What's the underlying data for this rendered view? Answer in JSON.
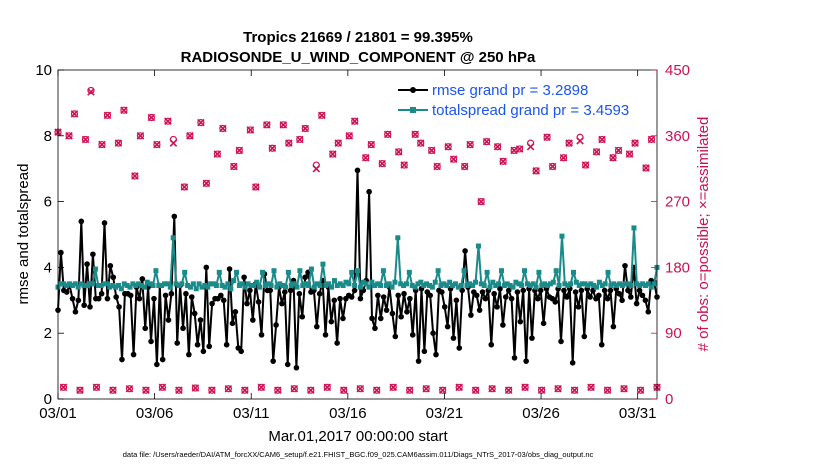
{
  "chart_data": {
    "type": "line",
    "title": "Tropics 21669 / 21801 = 99.395%",
    "subtitle": "RADIOSONDE_U_WIND_COMPONENT @ 250 hPa",
    "xlabel": "Mar.01,2017 00:00:00 start",
    "ylabel": "rmse and totalspread",
    "ylabel_right": "# of obs: o=possible; ×=assimilated",
    "footer": "data file: /Users/raeder/DAI/ATM_forcXX/CAM6_setup/f.e21.FHIST_BGC.f09_025.CAM6assim.011/Diags_NTrS_2017-03/obs_diag_output.nc",
    "xlim": [
      1,
      32
    ],
    "ylim": [
      0,
      10
    ],
    "ylim_right": [
      0,
      450
    ],
    "x_ticks": [
      1,
      6,
      11,
      16,
      21,
      26,
      31
    ],
    "x_tick_labels": [
      "03/01",
      "03/06",
      "03/11",
      "03/16",
      "03/21",
      "03/26",
      "03/31"
    ],
    "y_ticks": [
      0,
      2,
      4,
      6,
      8,
      10
    ],
    "y_tick_labels": [
      "0",
      "2",
      "4",
      "6",
      "8",
      "10"
    ],
    "y_right_ticks": [
      0,
      90,
      180,
      270,
      360,
      450
    ],
    "y_right_tick_labels": [
      "0",
      "90",
      "180",
      "270",
      "360",
      "450"
    ],
    "series": [
      {
        "name": "rmse grand pr = 3.2898",
        "color": "#000000",
        "marker": "dot",
        "axis": "left",
        "values": [
          2.7,
          4.45,
          3.3,
          3.25,
          3.45,
          3.05,
          2.65,
          3.0,
          5.4,
          2.85,
          4.1,
          2.8,
          4.4,
          3.05,
          3.05,
          3.2,
          5.35,
          3.05,
          4.05,
          3.7,
          3.1,
          2.8,
          1.2,
          3.2,
          3.2,
          3.15,
          1.35,
          3.4,
          3.05,
          3.65,
          2.15,
          3.4,
          1.75,
          3.05,
          1.05,
          3.45,
          1.2,
          3.15,
          2.4,
          3.2,
          5.55,
          1.7,
          3.45,
          2.15,
          3.2,
          1.35,
          3.1,
          2.6,
          1.65,
          2.4,
          1.45,
          4.0,
          1.6,
          2.9,
          3.05,
          3.05,
          3.15,
          3.0,
          1.65,
          3.95,
          2.3,
          2.65,
          1.55,
          1.45,
          3.7,
          2.9,
          3.3,
          2.4,
          3.5,
          2.95,
          1.95,
          3.8,
          3.3,
          3.3,
          1.15,
          2.25,
          3.4,
          2.9,
          3.25,
          1.05,
          3.3,
          3.6,
          0.95,
          3.2,
          2.5,
          3.7,
          3.85,
          3.25,
          3.3,
          2.2,
          3.2,
          3.6,
          1.95,
          3.4,
          2.35,
          3.0,
          1.7,
          3.05,
          2.45,
          3.05,
          3.15,
          3.1,
          3.3,
          6.95,
          3.05,
          3.3,
          3.6,
          6.3,
          2.45,
          2.15,
          3.15,
          2.45,
          3.1,
          2.7,
          3.4,
          2.6,
          1.9,
          3.15,
          2.5,
          3.2,
          2.65,
          3.05,
          1.95,
          3.3,
          1.15,
          3.35,
          1.45,
          3.25,
          3.15,
          2.0,
          1.35,
          3.3,
          3.25,
          2.8,
          2.2,
          3.35,
          1.85,
          3.0,
          1.55,
          3.3,
          4.5,
          3.4,
          2.55,
          3.25,
          3.15,
          2.7,
          3.25,
          3.05,
          3.3,
          1.65,
          3.2,
          2.8,
          3.35,
          2.25,
          3.1,
          3.3,
          3.05,
          1.25,
          3.25,
          2.35,
          3.3,
          1.15,
          3.35,
          1.85,
          3.3,
          3.05,
          3.3,
          2.3,
          3.35,
          3.1,
          3.05,
          2.95,
          3.35,
          1.75,
          3.3,
          3.1,
          3.35,
          1.1,
          3.25,
          2.8,
          3.3,
          1.9,
          3.35,
          3.1,
          3.3,
          3.05,
          3.15,
          1.65,
          3.3,
          3.05,
          3.3,
          2.2,
          3.35,
          3.2,
          3.0,
          4.05,
          3.3,
          3.1,
          4.0,
          2.9,
          3.3,
          3.15,
          3.0,
          2.65,
          3.6,
          3.55,
          3.1
        ]
      },
      {
        "name": "totalspread grand pr = 3.4593",
        "color": "#1a8a8a",
        "marker": "square",
        "axis": "left",
        "values": [
          3.4,
          3.5,
          3.5,
          3.45,
          3.5,
          3.45,
          3.5,
          3.4,
          3.5,
          3.45,
          3.45,
          3.5,
          3.5,
          3.95,
          3.45,
          3.45,
          3.5,
          3.5,
          3.4,
          3.45,
          3.4,
          3.45,
          3.35,
          3.5,
          3.45,
          3.4,
          3.5,
          3.45,
          3.5,
          3.45,
          3.4,
          3.55,
          3.5,
          3.45,
          3.9,
          3.45,
          3.45,
          3.5,
          3.5,
          3.4,
          4.9,
          3.5,
          3.45,
          3.5,
          3.85,
          3.45,
          3.4,
          3.5,
          3.35,
          3.5,
          3.4,
          3.45,
          3.4,
          3.5,
          3.5,
          3.45,
          3.85,
          3.45,
          3.4,
          3.5,
          3.35,
          3.6,
          3.85,
          3.45,
          3.5,
          3.4,
          3.5,
          3.45,
          3.45,
          3.55,
          3.4,
          3.85,
          3.45,
          3.5,
          3.45,
          3.9,
          3.4,
          3.5,
          3.45,
          3.4,
          3.85,
          3.45,
          3.5,
          3.4,
          3.9,
          3.45,
          3.5,
          3.45,
          3.95,
          3.4,
          3.5,
          3.45,
          4.1,
          3.45,
          3.5,
          3.4,
          3.6,
          3.45,
          3.5,
          3.45,
          3.55,
          3.5,
          3.85,
          3.45,
          3.9,
          3.4,
          3.55,
          3.5,
          3.4,
          3.55,
          3.45,
          3.5,
          3.45,
          3.9,
          3.45,
          3.5,
          3.4,
          3.55,
          4.9,
          3.5,
          3.45,
          3.5,
          3.85,
          3.45,
          3.4,
          3.5,
          3.55,
          3.45,
          3.5,
          3.45,
          3.4,
          3.55,
          3.9,
          3.45,
          3.5,
          3.45,
          3.55,
          3.45,
          3.5,
          3.4,
          3.45,
          3.9,
          3.45,
          3.5,
          3.45,
          3.55,
          4.65,
          3.5,
          3.45,
          3.85,
          3.4,
          3.55,
          3.45,
          3.5,
          3.9,
          3.45,
          3.5,
          3.45,
          3.4,
          3.55,
          3.5,
          3.45,
          3.9,
          3.5,
          3.45,
          3.5,
          3.4,
          3.85,
          3.45,
          3.5,
          3.45,
          3.5,
          3.55,
          3.9,
          3.45,
          4.95,
          3.5,
          3.45,
          3.5,
          3.85,
          3.55,
          3.45,
          3.5,
          3.5,
          3.45,
          3.5,
          3.45,
          3.4,
          3.55,
          3.45,
          3.5,
          3.85,
          3.45,
          3.5,
          3.45,
          3.5,
          3.45,
          3.5,
          3.5,
          3.45,
          5.2,
          3.5,
          3.45,
          3.5,
          3.45,
          3.5,
          3.4,
          3.5,
          4.0
        ]
      },
      {
        "name": "obs possible",
        "color": "#cc1155",
        "marker": "circle",
        "axis": "right",
        "values": [
          365,
          16,
          360,
          390,
          12,
          355,
          422,
          16,
          348,
          388,
          12,
          350,
          395,
          14,
          305,
          360,
          12,
          385,
          348,
          16,
          380,
          355,
          12,
          290,
          360,
          15,
          378,
          295,
          12,
          335,
          370,
          14,
          318,
          340,
          12,
          368,
          290,
          16,
          375,
          343,
          12,
          375,
          350,
          14,
          355,
          370,
          12,
          320,
          388,
          16,
          335,
          350,
          12,
          360,
          380,
          14,
          330,
          348,
          12,
          322,
          362,
          16,
          338,
          320,
          12,
          362,
          350,
          14,
          340,
          318,
          12,
          345,
          328,
          16,
          318,
          348,
          12,
          270,
          352,
          14,
          345,
          325,
          12,
          340,
          342,
          16,
          350,
          312,
          12,
          358,
          318,
          14,
          330,
          350,
          12,
          358,
          320,
          16,
          338,
          355,
          12,
          330,
          340,
          14,
          335,
          350,
          12,
          316,
          355,
          16
        ]
      },
      {
        "name": "obs assimilated",
        "color": "#cc1155",
        "marker": "x",
        "axis": "right",
        "values": [
          365,
          16,
          360,
          390,
          12,
          355,
          420,
          16,
          348,
          388,
          12,
          350,
          395,
          14,
          305,
          360,
          12,
          385,
          348,
          16,
          380,
          350,
          12,
          290,
          360,
          15,
          378,
          295,
          12,
          335,
          370,
          14,
          318,
          340,
          12,
          368,
          290,
          16,
          375,
          343,
          12,
          375,
          350,
          14,
          355,
          370,
          12,
          315,
          388,
          16,
          335,
          350,
          12,
          360,
          380,
          14,
          330,
          348,
          12,
          322,
          362,
          16,
          338,
          320,
          12,
          362,
          350,
          14,
          340,
          318,
          12,
          345,
          328,
          16,
          318,
          348,
          12,
          270,
          352,
          14,
          345,
          325,
          12,
          340,
          342,
          16,
          345,
          312,
          12,
          358,
          318,
          14,
          330,
          350,
          12,
          353,
          320,
          16,
          338,
          355,
          12,
          330,
          340,
          14,
          335,
          350,
          12,
          316,
          355,
          16
        ]
      }
    ],
    "legend": "top-right",
    "grid": false
  }
}
